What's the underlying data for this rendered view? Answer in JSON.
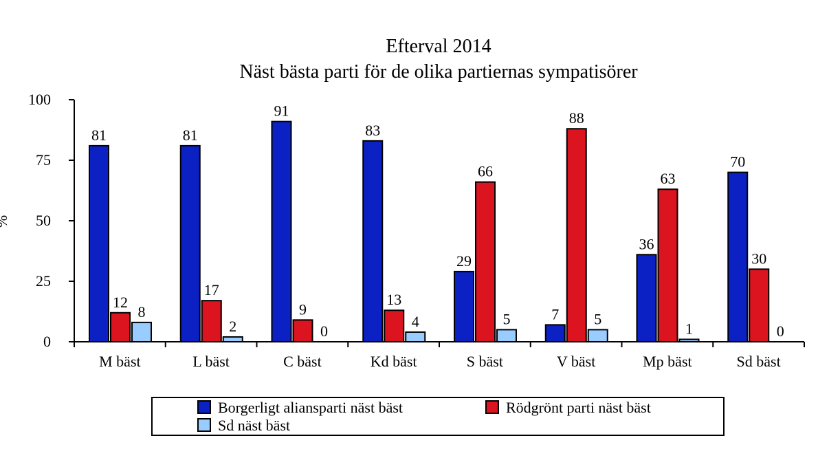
{
  "chart_data": {
    "type": "bar",
    "title": "Efterval 2014",
    "subtitle": "Näst bästa parti för de olika partiernas sympatisörer",
    "xlabel": "",
    "ylabel": "%",
    "ylim": [
      0,
      100
    ],
    "yticks": [
      0,
      25,
      50,
      75,
      100
    ],
    "grid": false,
    "legend_position": "bottom",
    "categories": [
      "M bäst",
      "L bäst",
      "C bäst",
      "Kd bäst",
      "S bäst",
      "V bäst",
      "Mp bäst",
      "Sd bäst"
    ],
    "series": [
      {
        "name": "Borgerligt aliansparti näst bäst",
        "color": "#0b21c4",
        "values": [
          81,
          81,
          91,
          83,
          29,
          7,
          36,
          70
        ],
        "labels": [
          "81",
          "81",
          "91",
          "83",
          "29",
          "7",
          "36",
          "70"
        ]
      },
      {
        "name": "Rödgrönt parti näst bäst",
        "color": "#dc1420",
        "values": [
          12,
          17,
          9,
          13,
          66,
          88,
          63,
          30
        ],
        "labels": [
          "12",
          "17",
          "9",
          "13",
          "66",
          "88",
          "63",
          "30"
        ]
      },
      {
        "name": "Sd näst bäst",
        "color": "#99ccff",
        "values": [
          8,
          2,
          0,
          4,
          5,
          5,
          1,
          0
        ],
        "labels": [
          "8",
          "2",
          "0",
          "4",
          "5",
          "5",
          "1",
          "0"
        ]
      }
    ]
  }
}
